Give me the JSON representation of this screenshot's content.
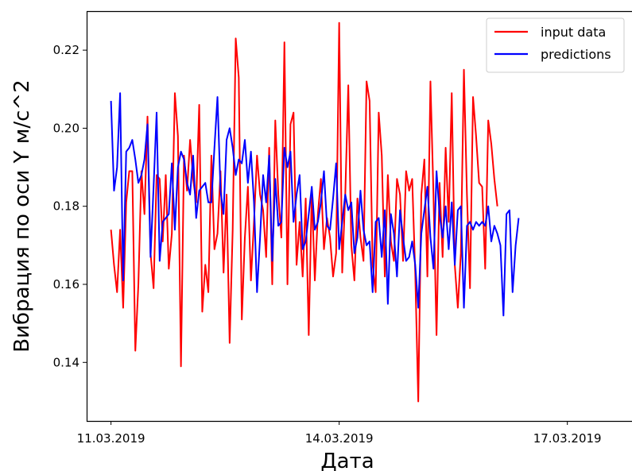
{
  "chart_data": {
    "type": "line",
    "title": "",
    "xlabel": "Дата",
    "ylabel": "Вибрация по оси Y м/с^2",
    "x_tick_labels": [
      "11.03.2019",
      "14.03.2019",
      "17.03.2019"
    ],
    "x_tick_days": [
      0,
      3,
      6
    ],
    "xlim_days": [
      -0.32,
      6.85
    ],
    "y_ticks": [
      "0.14",
      "0.16",
      "0.18",
      "0.20",
      "0.22"
    ],
    "ylim": [
      0.125,
      0.23
    ],
    "grid": false,
    "legend_position": "top-right",
    "series": [
      {
        "name": "input data",
        "color": "#ff0000",
        "x_start_day": 0.0,
        "x_step_day": 0.04,
        "values": [
          0.174,
          0.165,
          0.158,
          0.174,
          0.154,
          0.181,
          0.189,
          0.189,
          0.143,
          0.16,
          0.189,
          0.178,
          0.203,
          0.168,
          0.159,
          0.188,
          0.187,
          0.171,
          0.188,
          0.164,
          0.173,
          0.209,
          0.198,
          0.139,
          0.193,
          0.184,
          0.197,
          0.187,
          0.181,
          0.206,
          0.153,
          0.165,
          0.158,
          0.193,
          0.169,
          0.173,
          0.189,
          0.163,
          0.183,
          0.145,
          0.174,
          0.223,
          0.213,
          0.151,
          0.172,
          0.185,
          0.161,
          0.176,
          0.193,
          0.183,
          0.179,
          0.167,
          0.195,
          0.16,
          0.202,
          0.183,
          0.172,
          0.222,
          0.16,
          0.201,
          0.204,
          0.165,
          0.176,
          0.162,
          0.182,
          0.147,
          0.184,
          0.161,
          0.178,
          0.187,
          0.169,
          0.177,
          0.172,
          0.162,
          0.168,
          0.227,
          0.163,
          0.183,
          0.211,
          0.17,
          0.161,
          0.182,
          0.172,
          0.166,
          0.212,
          0.207,
          0.165,
          0.158,
          0.204,
          0.193,
          0.162,
          0.188,
          0.171,
          0.166,
          0.187,
          0.183,
          0.166,
          0.189,
          0.184,
          0.187,
          0.163,
          0.13,
          0.183,
          0.192,
          0.162,
          0.212,
          0.183,
          0.147,
          0.186,
          0.167,
          0.195,
          0.176,
          0.209,
          0.165,
          0.154,
          0.168,
          0.215,
          0.183,
          0.159,
          0.208,
          0.198,
          0.186,
          0.185,
          0.164,
          0.202,
          0.196,
          0.187,
          0.18
        ]
      },
      {
        "name": "predictions",
        "color": "#0000ff",
        "x_start_day": 0.0,
        "x_step_day": 0.04,
        "values": [
          0.207,
          0.184,
          0.19,
          0.209,
          0.161,
          0.194,
          0.195,
          0.197,
          0.192,
          0.186,
          0.188,
          0.192,
          0.201,
          0.167,
          0.185,
          0.204,
          0.166,
          0.176,
          0.177,
          0.178,
          0.191,
          0.174,
          0.19,
          0.194,
          0.192,
          0.186,
          0.183,
          0.193,
          0.177,
          0.184,
          0.185,
          0.186,
          0.181,
          0.181,
          0.195,
          0.208,
          0.184,
          0.178,
          0.197,
          0.2,
          0.195,
          0.188,
          0.192,
          0.191,
          0.197,
          0.186,
          0.194,
          0.181,
          0.158,
          0.172,
          0.188,
          0.181,
          0.193,
          0.166,
          0.187,
          0.175,
          0.176,
          0.195,
          0.19,
          0.194,
          0.176,
          0.183,
          0.188,
          0.169,
          0.171,
          0.178,
          0.185,
          0.174,
          0.176,
          0.181,
          0.189,
          0.175,
          0.174,
          0.182,
          0.191,
          0.169,
          0.176,
          0.183,
          0.179,
          0.181,
          0.168,
          0.172,
          0.184,
          0.174,
          0.17,
          0.171,
          0.158,
          0.176,
          0.177,
          0.167,
          0.179,
          0.155,
          0.178,
          0.173,
          0.162,
          0.179,
          0.172,
          0.166,
          0.167,
          0.171,
          0.165,
          0.154,
          0.173,
          0.179,
          0.185,
          0.172,
          0.164,
          0.189,
          0.178,
          0.172,
          0.18,
          0.169,
          0.181,
          0.165,
          0.179,
          0.18,
          0.154,
          0.175,
          0.176,
          0.174,
          0.176,
          0.175,
          0.176,
          0.175,
          0.18,
          0.171,
          0.175,
          0.173,
          0.17,
          0.152,
          0.178,
          0.179,
          0.158,
          0.17,
          0.177
        ]
      }
    ]
  }
}
